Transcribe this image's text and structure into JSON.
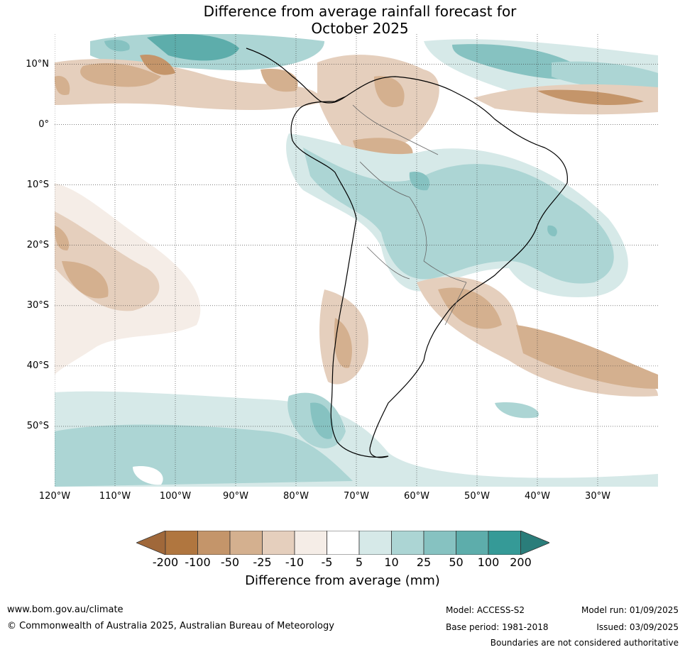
{
  "title": {
    "line1": "Difference from average rainfall forecast for",
    "line2": "October 2025"
  },
  "map": {
    "latitude_labels": [
      {
        "text": "10°N",
        "lat": 10
      },
      {
        "text": "0°",
        "lat": 0
      },
      {
        "text": "10°S",
        "lat": -10
      },
      {
        "text": "20°S",
        "lat": -20
      },
      {
        "text": "30°S",
        "lat": -30
      },
      {
        "text": "40°S",
        "lat": -40
      },
      {
        "text": "50°S",
        "lat": -50
      }
    ],
    "longitude_labels": [
      {
        "text": "120°W",
        "lon": -120
      },
      {
        "text": "110°W",
        "lon": -110
      },
      {
        "text": "100°W",
        "lon": -100
      },
      {
        "text": "90°W",
        "lon": -90
      },
      {
        "text": "80°W",
        "lon": -80
      },
      {
        "text": "70°W",
        "lon": -70
      },
      {
        "text": "60°W",
        "lon": -60
      },
      {
        "text": "50°W",
        "lon": -50
      },
      {
        "text": "40°W",
        "lon": -40
      },
      {
        "text": "30°W",
        "lon": -30
      }
    ],
    "extent": {
      "lon_min": -120,
      "lon_max": -20,
      "lat_min": -60,
      "lat_max": 15
    }
  },
  "legend": {
    "labels": [
      "-200",
      "-100",
      "-50",
      "-25",
      "-10",
      "-5",
      "5",
      "10",
      "25",
      "50",
      "100",
      "200"
    ],
    "colors": [
      "#a0683a",
      "#b0763f",
      "#c4956a",
      "#d4b08f",
      "#e5cfbd",
      "#f5ede7",
      "#ffffff",
      "#d6e9e8",
      "#acd5d4",
      "#86c2c1",
      "#5dadab",
      "#359a97",
      "#2a7d7a"
    ],
    "title": "Difference from average (mm)"
  },
  "footer": {
    "website": "www.bom.gov.au/climate",
    "copyright": "© Commonwealth of Australia 2025, Australian Bureau of Meteorology",
    "model": "Model: ACCESS-S2",
    "model_run": "Model run: 01/09/2025",
    "base_period": "Base period: 1981-2018",
    "issued": "Issued: 03/09/2025",
    "disclaimer": "Boundaries are not considered authoritative"
  }
}
